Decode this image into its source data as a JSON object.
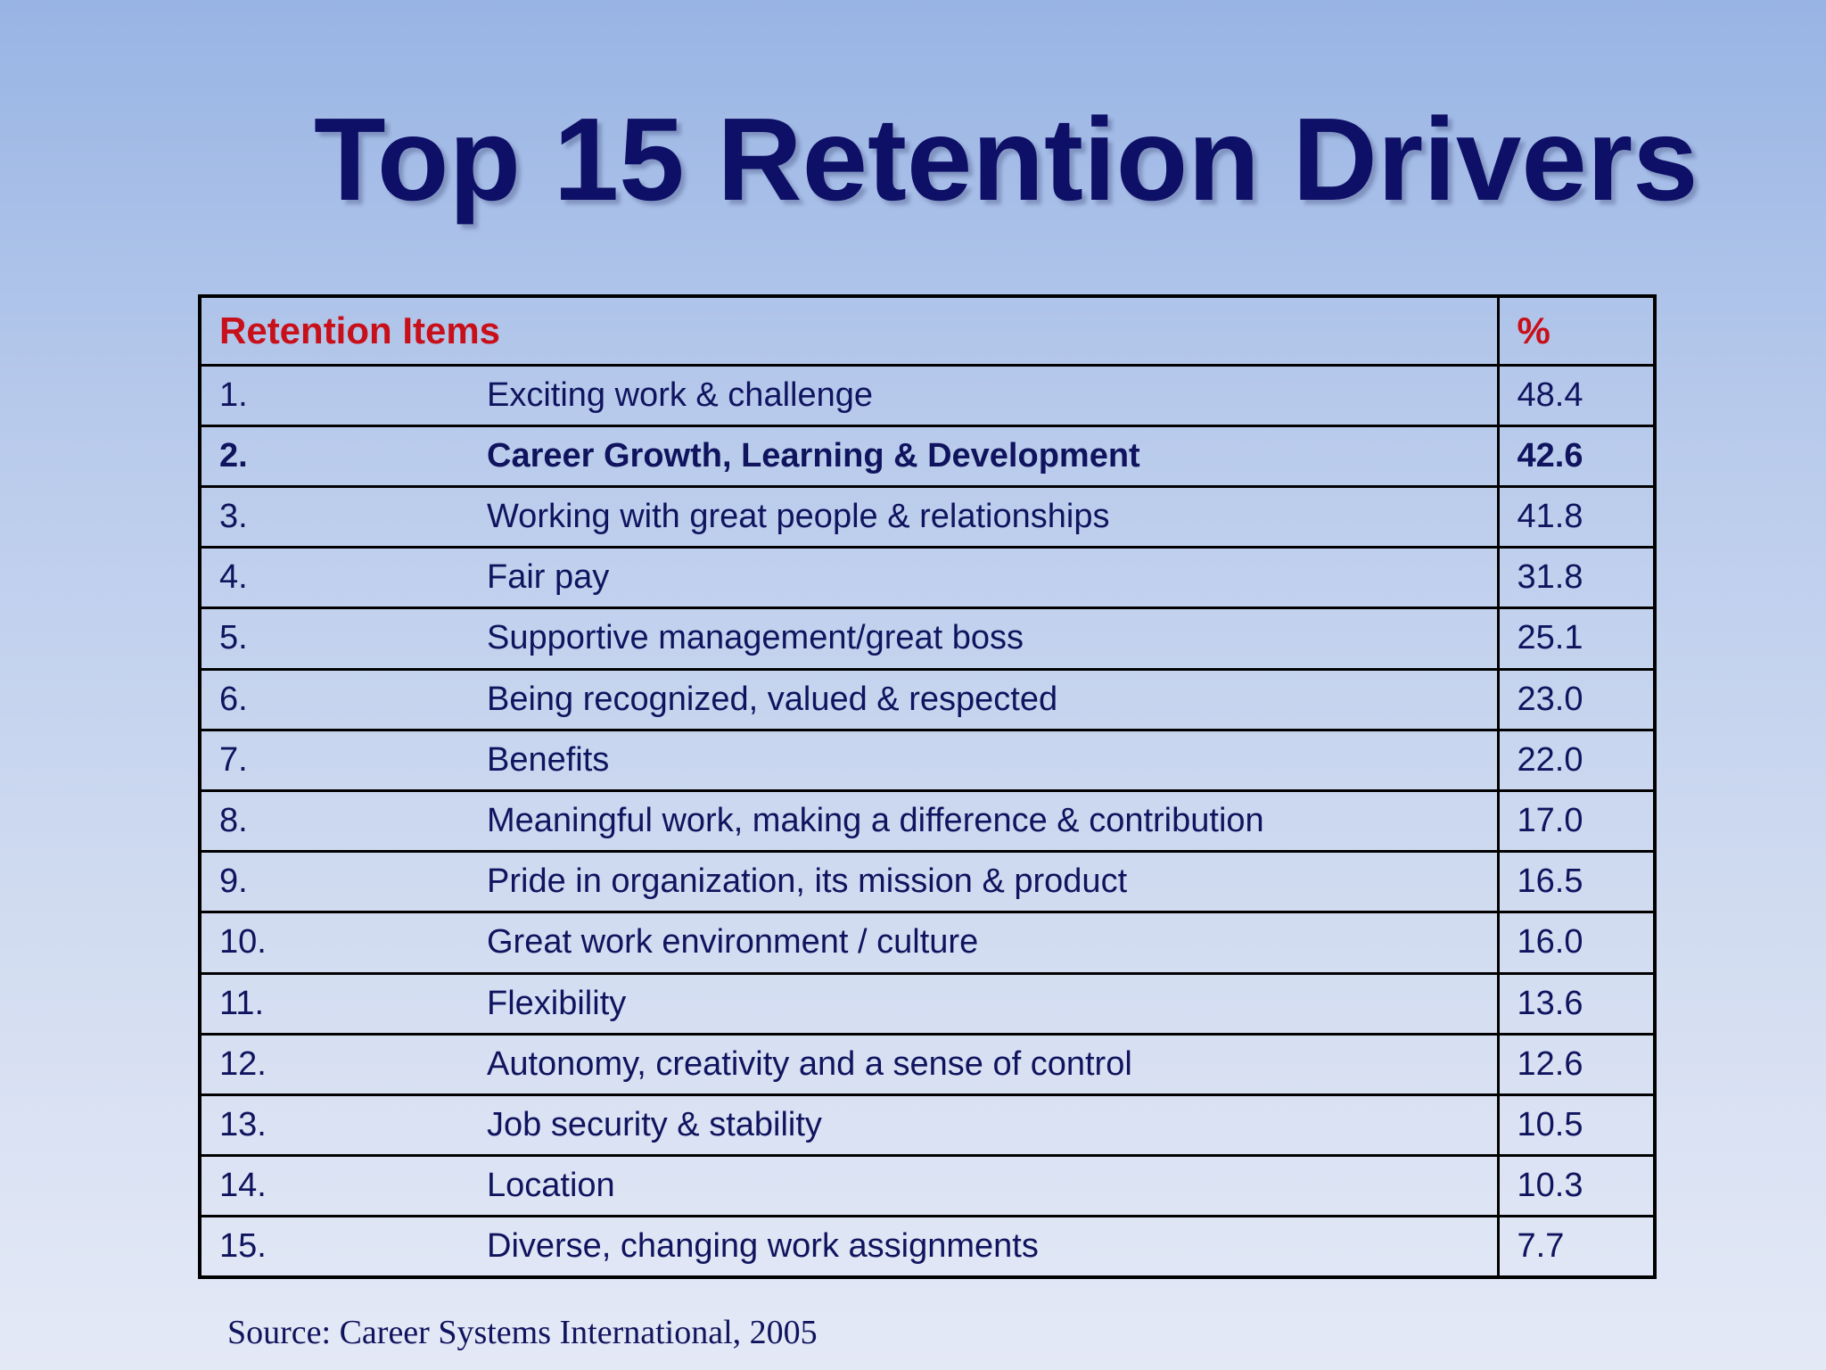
{
  "slide": {
    "title": "Top 15 Retention Drivers",
    "source": "Source:  Career Systems International, 2005"
  },
  "table": {
    "headers": {
      "items": "Retention Items",
      "percent": "%"
    },
    "rows": [
      {
        "rank": "1.",
        "item": "Exciting work & challenge",
        "percent": "48.4",
        "bold": false
      },
      {
        "rank": "2.",
        "item": "Career Growth, Learning & Development",
        "percent": "42.6",
        "bold": true
      },
      {
        "rank": "3.",
        "item": "Working with great people & relationships",
        "percent": "41.8",
        "bold": false
      },
      {
        "rank": "4.",
        "item": "Fair pay",
        "percent": "31.8",
        "bold": false
      },
      {
        "rank": "5.",
        "item": "Supportive management/great boss",
        "percent": "25.1",
        "bold": false
      },
      {
        "rank": "6.",
        "item": "Being recognized, valued & respected",
        "percent": "23.0",
        "bold": false
      },
      {
        "rank": "7.",
        "item": "Benefits",
        "percent": "22.0",
        "bold": false
      },
      {
        "rank": "8.",
        "item": "Meaningful work, making a difference & contribution",
        "percent": "17.0",
        "bold": false
      },
      {
        "rank": "9.",
        "item": "Pride in organization, its mission & product",
        "percent": "16.5",
        "bold": false
      },
      {
        "rank": "10.",
        "item": "Great work environment / culture",
        "percent": "16.0",
        "bold": false
      },
      {
        "rank": "11.",
        "item": "Flexibility",
        "percent": "13.6",
        "bold": false
      },
      {
        "rank": "12.",
        "item": "Autonomy, creativity and a sense of control",
        "percent": "12.6",
        "bold": false
      },
      {
        "rank": "13.",
        "item": "Job security & stability",
        "percent": "10.5",
        "bold": false
      },
      {
        "rank": "14.",
        "item": "Location",
        "percent": "10.3",
        "bold": false
      },
      {
        "rank": "15.",
        "item": "Diverse, changing work assignments",
        "percent": "7.7",
        "bold": false
      }
    ]
  },
  "colors": {
    "title": "#0e0f66",
    "header_text": "#c8101a",
    "body_text": "#10145e",
    "border": "#000000"
  }
}
